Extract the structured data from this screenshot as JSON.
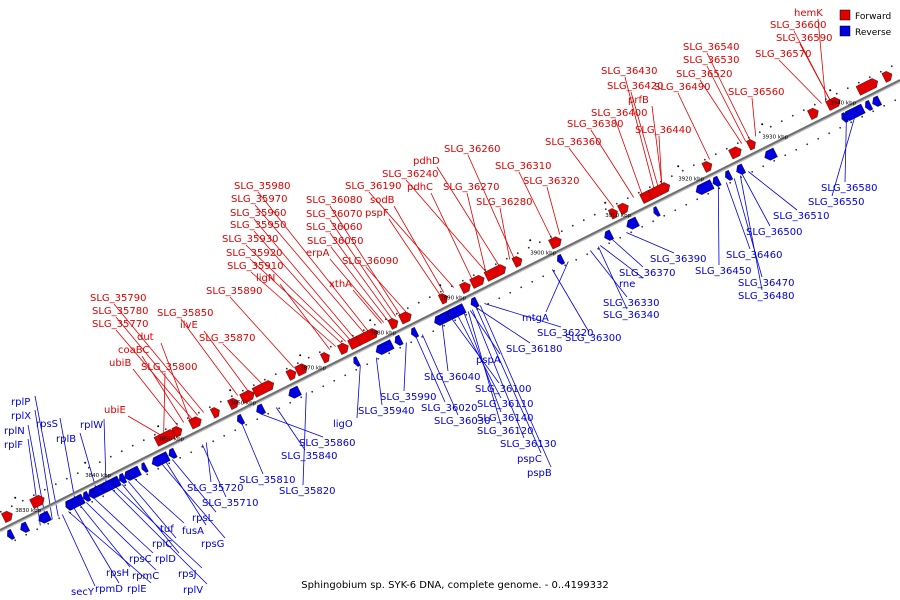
{
  "legend": {
    "forward_label": "Forward",
    "reverse_label": "Reverse",
    "forward_color": "#e00000",
    "reverse_color": "#0000e0"
  },
  "caption": "Sphingobium sp. SYK-6 DNA, complete genome. - 0..4199332",
  "backbone_color": "#6e6e6e",
  "scale_ticks": [
    "3830 kbp",
    "3840 kbp",
    "3850 kbp",
    "3860 kbp",
    "3870 kbp",
    "3880 kbp",
    "3890 kbp",
    "3900 kbp",
    "3910 kbp",
    "3920 kbp",
    "3930 kbp",
    "3940 kbp"
  ],
  "forward_genes": [
    "hemK",
    "SLG_36600",
    "SLG_36590",
    "SLG_36570",
    "SLG_36540",
    "SLG_36530",
    "SLG_36520",
    "SLG_36560",
    "SLG_36430",
    "SLG_36420",
    "prfB",
    "SLG_36490",
    "SLG_36400",
    "SLG_36380",
    "SLG_36440",
    "SLG_36360",
    "SLG_36260",
    "pdhD",
    "SLG_36240",
    "pdhC",
    "SLG_36270",
    "SLG_36310",
    "SLG_36320",
    "SLG_36190",
    "sodB",
    "pspF",
    "SLG_36280",
    "SLG_35980",
    "SLG_35970",
    "SLG_35960",
    "SLG_35950",
    "SLG_35930",
    "SLG_35920",
    "SLG_35910",
    "ligN",
    "SLG_35890",
    "SLG_36080",
    "SLG_36070",
    "SLG_36060",
    "SLG_36050",
    "erpA",
    "SLG_36090",
    "xthA",
    "SLG_35790",
    "SLG_35780",
    "SLG_35770",
    "dut",
    "coaBC",
    "ubiB",
    "SLG_35850",
    "ilvE",
    "SLG_35870",
    "SLG_35800",
    "ubiE"
  ],
  "reverse_genes": [
    "SLG_36580",
    "SLG_36550",
    "SLG_36510",
    "SLG_36500",
    "SLG_36460",
    "SLG_36450",
    "SLG_36470",
    "SLG_36480",
    "SLG_36390",
    "SLG_36370",
    "rne",
    "SLG_36330",
    "SLG_36340",
    "mtgA",
    "SLG_36300",
    "SLG_36220",
    "SLG_36180",
    "pspA",
    "SLG_36040",
    "SLG_36100",
    "SLG_36110",
    "SLG_36140",
    "SLG_36120",
    "SLG_36130",
    "pspC",
    "pspB",
    "SLG_35990",
    "SLG_36020",
    "SLG_36030",
    "SLG_35940",
    "ligO",
    "SLG_35860",
    "SLG_35840",
    "SLG_35820",
    "SLG_35810",
    "SLG_35720",
    "SLG_35710",
    "rpsL",
    "fusA",
    "rpsG",
    "tuf",
    "rplC",
    "rplD",
    "rpsJ",
    "rplV",
    "rpsC",
    "rpmC",
    "rpsH",
    "rpmD",
    "rplE",
    "secY",
    "rplP",
    "rplX",
    "rplN",
    "rplF",
    "rpsS",
    "rplB",
    "rplW"
  ]
}
